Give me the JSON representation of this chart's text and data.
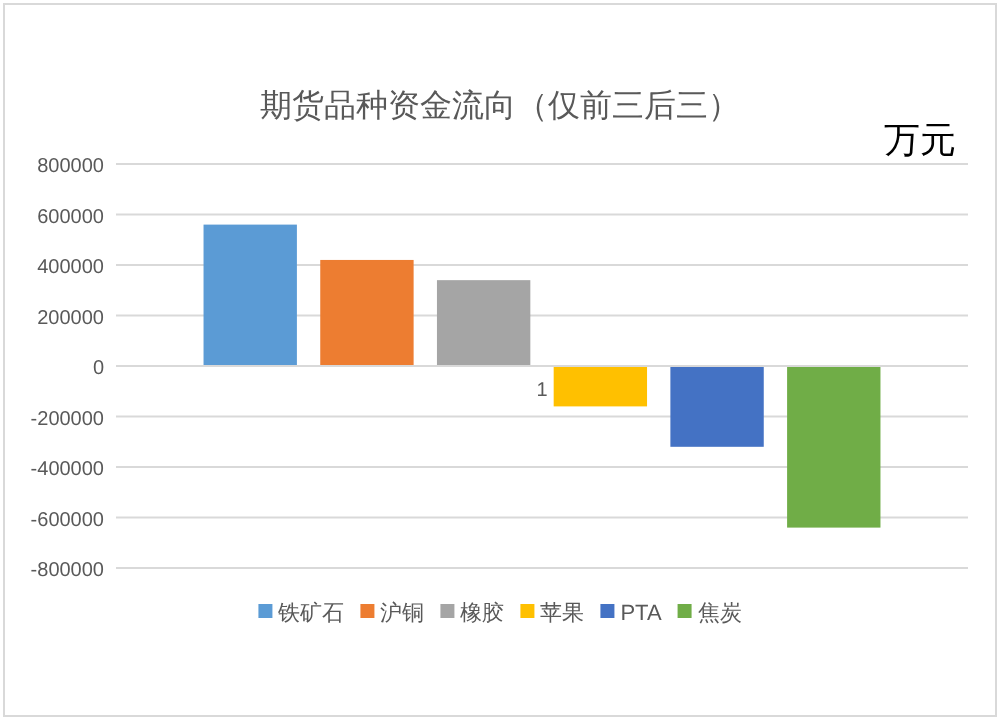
{
  "chart_data": {
    "type": "bar",
    "title": "期货品种资金流向（仅前三后三）",
    "annotations": [
      "万元"
    ],
    "categories": [
      "1"
    ],
    "series": [
      {
        "name": "铁矿石",
        "color": "#5b9bd5",
        "values": [
          560000
        ]
      },
      {
        "name": "沪铜",
        "color": "#ed7d31",
        "values": [
          420000
        ]
      },
      {
        "name": "橡胶",
        "color": "#a5a5a5",
        "values": [
          340000
        ]
      },
      {
        "name": "苹果",
        "color": "#ffc000",
        "values": [
          -160000
        ]
      },
      {
        "name": "PTA",
        "color": "#4472c4",
        "values": [
          -320000
        ]
      },
      {
        "name": "焦炭",
        "color": "#70ad47",
        "values": [
          -640000
        ]
      }
    ],
    "ylim": [
      -800000,
      800000
    ],
    "yticks": [
      -800000,
      -600000,
      -400000,
      -200000,
      0,
      200000,
      400000,
      600000,
      800000
    ],
    "grid": "y",
    "legend": "bottom"
  }
}
